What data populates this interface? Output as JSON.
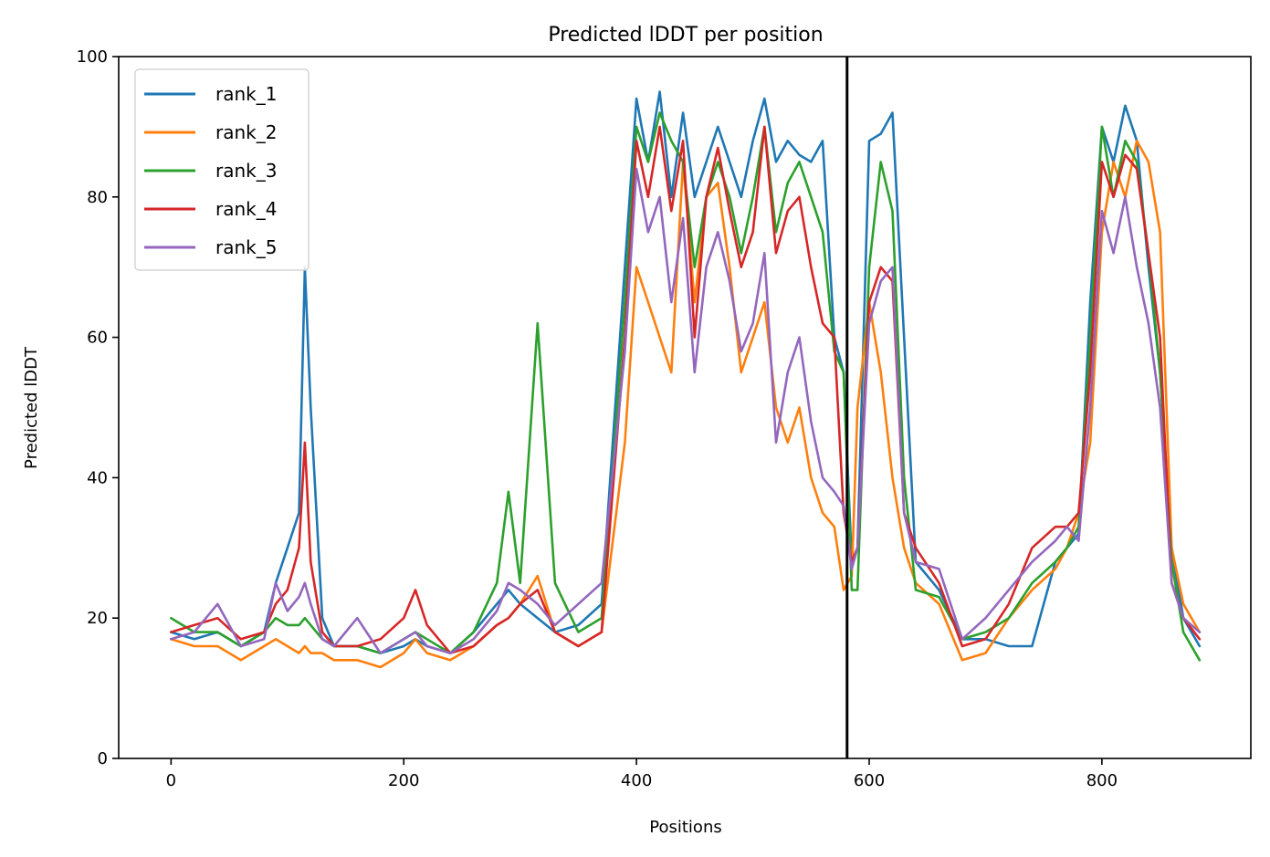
{
  "chart_data": {
    "type": "line",
    "title": "Predicted lDDT per position",
    "xlabel": "Positions",
    "ylabel": "Predicted lDDT",
    "xlim": [
      -45,
      928
    ],
    "ylim": [
      0,
      100
    ],
    "xticks": [
      0,
      200,
      400,
      600,
      800
    ],
    "yticks": [
      0,
      20,
      40,
      60,
      80,
      100
    ],
    "grid": false,
    "legend": {
      "position": "top-left"
    },
    "vline": {
      "x": 581,
      "color": "#000000"
    },
    "x": [
      0,
      20,
      40,
      60,
      80,
      90,
      100,
      110,
      115,
      120,
      130,
      140,
      160,
      180,
      200,
      210,
      220,
      240,
      260,
      280,
      290,
      300,
      315,
      330,
      350,
      370,
      390,
      400,
      410,
      420,
      430,
      440,
      450,
      460,
      470,
      480,
      490,
      500,
      510,
      520,
      530,
      540,
      550,
      560,
      570,
      578,
      585,
      590,
      600,
      610,
      620,
      630,
      640,
      660,
      680,
      700,
      720,
      740,
      760,
      770,
      780,
      790,
      800,
      810,
      820,
      830,
      840,
      850,
      860,
      870,
      884
    ],
    "series": [
      {
        "name": "rank_1",
        "color": "#1f77b4",
        "values": [
          18,
          17,
          18,
          16,
          18,
          25,
          30,
          35,
          70,
          50,
          20,
          16,
          16,
          15,
          16,
          17,
          16,
          15,
          18,
          22,
          24,
          22,
          20,
          18,
          19,
          22,
          70,
          94,
          85,
          95,
          80,
          92,
          80,
          85,
          90,
          85,
          80,
          88,
          94,
          85,
          88,
          86,
          85,
          88,
          60,
          55,
          28,
          30,
          88,
          89,
          92,
          60,
          28,
          24,
          17,
          17,
          16,
          16,
          28,
          30,
          32,
          65,
          90,
          85,
          93,
          88,
          70,
          55,
          30,
          20,
          16
        ]
      },
      {
        "name": "rank_2",
        "color": "#ff7f0e",
        "values": [
          17,
          16,
          16,
          14,
          16,
          17,
          16,
          15,
          16,
          15,
          15,
          14,
          14,
          13,
          15,
          17,
          15,
          14,
          16,
          19,
          20,
          22,
          26,
          18,
          16,
          18,
          45,
          70,
          65,
          60,
          55,
          85,
          65,
          80,
          82,
          70,
          55,
          60,
          65,
          50,
          45,
          50,
          40,
          35,
          33,
          24,
          26,
          50,
          65,
          55,
          40,
          30,
          25,
          22,
          14,
          15,
          20,
          24,
          27,
          30,
          35,
          45,
          75,
          85,
          80,
          88,
          85,
          75,
          30,
          22,
          18
        ]
      },
      {
        "name": "rank_3",
        "color": "#2ca02c",
        "values": [
          20,
          18,
          18,
          16,
          18,
          20,
          19,
          19,
          20,
          19,
          17,
          16,
          16,
          15,
          17,
          18,
          17,
          15,
          18,
          25,
          38,
          25,
          62,
          25,
          18,
          20,
          65,
          90,
          85,
          92,
          88,
          85,
          70,
          80,
          85,
          80,
          72,
          80,
          90,
          75,
          82,
          85,
          80,
          75,
          58,
          55,
          24,
          24,
          70,
          85,
          78,
          40,
          24,
          23,
          17,
          18,
          20,
          25,
          28,
          30,
          33,
          60,
          90,
          80,
          88,
          85,
          72,
          55,
          28,
          18,
          14
        ]
      },
      {
        "name": "rank_4",
        "color": "#d62728",
        "values": [
          18,
          19,
          20,
          17,
          18,
          22,
          24,
          30,
          45,
          28,
          18,
          16,
          16,
          17,
          20,
          24,
          19,
          15,
          16,
          19,
          20,
          22,
          24,
          18,
          16,
          18,
          60,
          88,
          80,
          90,
          78,
          88,
          60,
          80,
          87,
          78,
          70,
          75,
          90,
          72,
          78,
          80,
          70,
          62,
          60,
          35,
          28,
          30,
          65,
          70,
          68,
          35,
          30,
          25,
          16,
          17,
          22,
          30,
          33,
          33,
          35,
          55,
          85,
          80,
          86,
          84,
          72,
          60,
          25,
          20,
          17
        ]
      },
      {
        "name": "rank_5",
        "color": "#9467bd",
        "values": [
          17,
          18,
          22,
          16,
          17,
          25,
          21,
          23,
          25,
          22,
          17,
          16,
          20,
          15,
          17,
          18,
          16,
          15,
          17,
          21,
          25,
          24,
          22,
          19,
          22,
          25,
          58,
          84,
          75,
          80,
          65,
          77,
          55,
          70,
          75,
          68,
          58,
          62,
          72,
          45,
          55,
          60,
          48,
          40,
          38,
          36,
          27,
          30,
          62,
          68,
          70,
          35,
          28,
          27,
          17,
          20,
          24,
          28,
          31,
          33,
          31,
          50,
          78,
          72,
          80,
          70,
          62,
          50,
          25,
          20,
          18
        ]
      }
    ]
  }
}
